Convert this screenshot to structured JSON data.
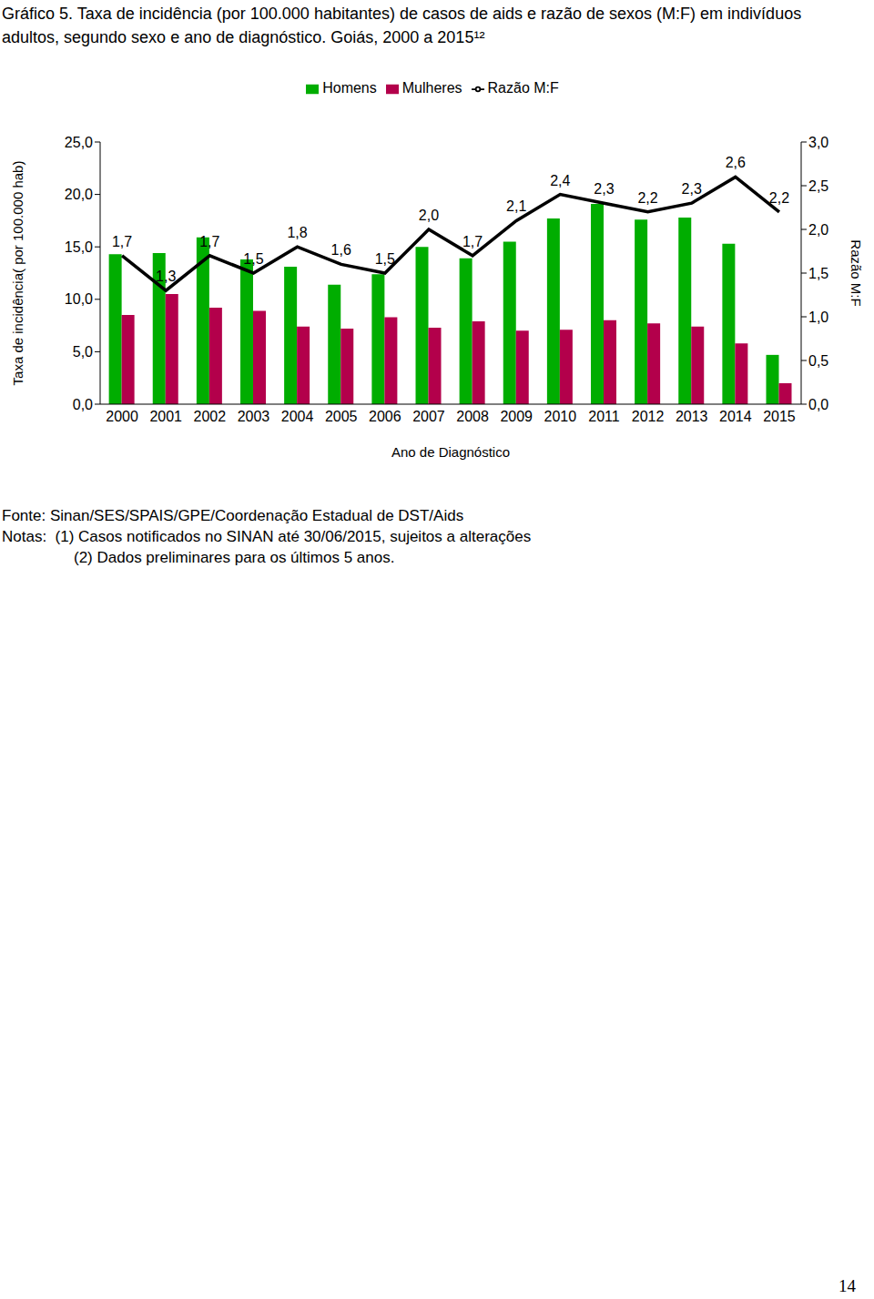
{
  "chart_data": {
    "type": "bar",
    "title": "Gráfico 5. Taxa de incidência (por 100.000 habitantes) de casos de aids e razão de sexos (M:F) em indivíduos adultos, segundo sexo e ano de diagnóstico. Goiás, 2000 a 2015¹²",
    "x_label": "Ano de Diagnóstico",
    "y_label": "Taxa de incidência( por 100.000 hab)",
    "y2_label": "Razão M:F",
    "categories": [
      "2000",
      "2001",
      "2002",
      "2003",
      "2004",
      "2005",
      "2006",
      "2007",
      "2008",
      "2009",
      "2010",
      "2011",
      "2012",
      "2013",
      "2014",
      "2015"
    ],
    "series": [
      {
        "name": "Homens",
        "type": "bar",
        "color": "#00ad00",
        "values": [
          14.3,
          14.4,
          15.9,
          13.8,
          13.1,
          11.4,
          12.4,
          15.0,
          13.9,
          15.5,
          17.7,
          19.1,
          17.6,
          17.8,
          15.3,
          4.7
        ]
      },
      {
        "name": "Mulheres",
        "type": "bar",
        "color": "#b3004b",
        "values": [
          8.5,
          10.5,
          9.2,
          8.9,
          7.4,
          7.2,
          8.3,
          7.3,
          7.9,
          7.0,
          7.1,
          8.0,
          7.7,
          7.4,
          5.8,
          2.0
        ]
      },
      {
        "name": "Razão M:F",
        "type": "line",
        "axis": "y2",
        "color": "#000000",
        "values": [
          1.7,
          1.3,
          1.7,
          1.5,
          1.8,
          1.6,
          1.5,
          2.0,
          1.7,
          2.1,
          2.4,
          2.3,
          2.2,
          2.3,
          2.6,
          2.2
        ],
        "value_labels": [
          "1,7",
          "1,3",
          "1,7",
          "1,5",
          "1,8",
          "1,6",
          "1,5",
          "2,0",
          "1,7",
          "2,1",
          "2,4",
          "2,3",
          "2,2",
          "2,3",
          "2,6",
          "2,2"
        ]
      }
    ],
    "ylim": [
      0,
      25
    ],
    "yticks": [
      {
        "value": 0,
        "label": "0,0"
      },
      {
        "value": 5,
        "label": "5,0"
      },
      {
        "value": 10,
        "label": "10,0"
      },
      {
        "value": 15,
        "label": "15,0"
      },
      {
        "value": 20,
        "label": "20,0"
      },
      {
        "value": 25,
        "label": "25,0"
      }
    ],
    "y2lim": [
      0,
      3
    ],
    "y2ticks": [
      {
        "value": 0,
        "label": "0,0"
      },
      {
        "value": 0.5,
        "label": "0,5"
      },
      {
        "value": 1,
        "label": "1,0"
      },
      {
        "value": 1.5,
        "label": "1,5"
      },
      {
        "value": 2,
        "label": "2,0"
      },
      {
        "value": 2.5,
        "label": "2,5"
      },
      {
        "value": 3,
        "label": "3,0"
      }
    ],
    "grid": false,
    "legend": "top",
    "data_labels": true,
    "annotations": [
      "Fonte: Sinan/SES/SPAIS/GPE/Coordenação Estadual de DST/Aids",
      "Notas:  (1) Casos notificados no SINAN até 30/06/2015, sujeitos a alterações",
      "(2) Dados preliminares para os últimos 5 anos.",
      "14"
    ]
  }
}
